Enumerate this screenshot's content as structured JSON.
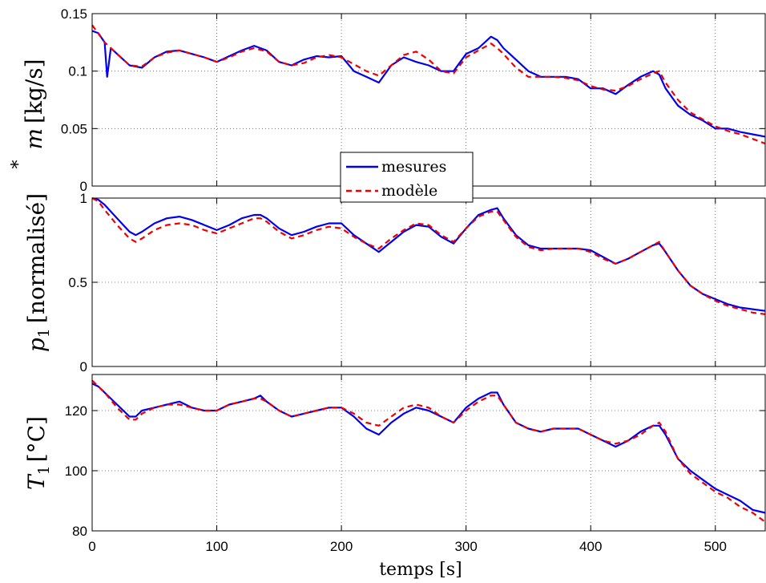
{
  "chart_data": [
    {
      "type": "line",
      "ylabel_var": "m",
      "ylabel_accent": "*",
      "ylabel_unit": "[kg/s]",
      "ylim": [
        0,
        0.15
      ],
      "yticks": [
        0,
        0.05,
        0.1,
        0.15
      ],
      "ytick_labels": [
        "0",
        "0.05",
        "0.1",
        "0.15"
      ],
      "xlim": [
        0,
        540
      ],
      "grid": true,
      "legend": {
        "position": "bottom-center",
        "entries": [
          "mesures",
          "modèle"
        ]
      },
      "series": [
        {
          "name": "mesures",
          "color": "#0000ee",
          "style": "solid",
          "x": [
            0,
            5,
            10,
            12,
            15,
            20,
            30,
            40,
            50,
            60,
            70,
            80,
            90,
            100,
            110,
            120,
            130,
            140,
            150,
            160,
            170,
            180,
            190,
            200,
            210,
            220,
            230,
            240,
            250,
            260,
            270,
            280,
            290,
            300,
            310,
            320,
            325,
            330,
            340,
            350,
            360,
            370,
            380,
            390,
            400,
            410,
            420,
            430,
            440,
            450,
            455,
            460,
            470,
            480,
            490,
            500,
            510,
            520,
            530,
            540
          ],
          "y": [
            0.135,
            0.133,
            0.125,
            0.095,
            0.12,
            0.115,
            0.105,
            0.103,
            0.112,
            0.117,
            0.118,
            0.115,
            0.112,
            0.108,
            0.113,
            0.118,
            0.122,
            0.118,
            0.108,
            0.105,
            0.11,
            0.113,
            0.112,
            0.113,
            0.1,
            0.095,
            0.09,
            0.105,
            0.112,
            0.108,
            0.105,
            0.1,
            0.1,
            0.115,
            0.12,
            0.13,
            0.127,
            0.12,
            0.11,
            0.1,
            0.095,
            0.095,
            0.095,
            0.093,
            0.085,
            0.085,
            0.08,
            0.088,
            0.095,
            0.1,
            0.097,
            0.085,
            0.07,
            0.062,
            0.057,
            0.05,
            0.05,
            0.047,
            0.045,
            0.043
          ]
        },
        {
          "name": "modèle",
          "color": "#ee0000",
          "style": "dashed",
          "x": [
            0,
            10,
            20,
            30,
            40,
            50,
            60,
            70,
            80,
            90,
            100,
            110,
            120,
            130,
            140,
            150,
            160,
            170,
            180,
            190,
            200,
            210,
            220,
            230,
            240,
            250,
            260,
            270,
            280,
            290,
            300,
            310,
            320,
            325,
            330,
            340,
            350,
            360,
            370,
            380,
            390,
            400,
            410,
            420,
            430,
            440,
            450,
            455,
            460,
            470,
            480,
            490,
            500,
            510,
            520,
            530,
            540
          ],
          "y": [
            0.14,
            0.125,
            0.115,
            0.105,
            0.104,
            0.112,
            0.116,
            0.118,
            0.115,
            0.112,
            0.108,
            0.112,
            0.117,
            0.12,
            0.117,
            0.108,
            0.105,
            0.107,
            0.112,
            0.114,
            0.112,
            0.106,
            0.1,
            0.096,
            0.105,
            0.114,
            0.117,
            0.11,
            0.1,
            0.098,
            0.112,
            0.118,
            0.124,
            0.12,
            0.115,
            0.103,
            0.095,
            0.095,
            0.095,
            0.094,
            0.092,
            0.087,
            0.084,
            0.083,
            0.087,
            0.093,
            0.098,
            0.1,
            0.09,
            0.075,
            0.064,
            0.058,
            0.052,
            0.048,
            0.045,
            0.041,
            0.037
          ]
        }
      ]
    },
    {
      "type": "line",
      "ylabel_var": "p",
      "ylabel_sub": "1",
      "ylabel_unit": "[normalisé]",
      "ylim": [
        0,
        1
      ],
      "yticks": [
        0,
        0.5,
        1
      ],
      "ytick_labels": [
        "0",
        "0.5",
        "1"
      ],
      "xlim": [
        0,
        540
      ],
      "grid": true,
      "series": [
        {
          "name": "mesures",
          "color": "#0000ee",
          "style": "solid",
          "x": [
            0,
            5,
            10,
            20,
            30,
            35,
            40,
            50,
            60,
            70,
            80,
            90,
            100,
            110,
            120,
            130,
            135,
            140,
            150,
            160,
            170,
            180,
            190,
            200,
            210,
            220,
            230,
            240,
            250,
            260,
            270,
            280,
            290,
            300,
            310,
            320,
            325,
            330,
            340,
            350,
            360,
            370,
            380,
            390,
            400,
            410,
            420,
            430,
            440,
            450,
            455,
            460,
            470,
            480,
            490,
            500,
            510,
            520,
            530,
            540
          ],
          "y": [
            1.0,
            0.99,
            0.96,
            0.88,
            0.8,
            0.78,
            0.8,
            0.85,
            0.88,
            0.89,
            0.87,
            0.84,
            0.81,
            0.84,
            0.88,
            0.9,
            0.9,
            0.88,
            0.82,
            0.78,
            0.8,
            0.83,
            0.85,
            0.85,
            0.78,
            0.73,
            0.68,
            0.74,
            0.8,
            0.84,
            0.83,
            0.77,
            0.73,
            0.82,
            0.9,
            0.93,
            0.94,
            0.88,
            0.78,
            0.72,
            0.7,
            0.7,
            0.7,
            0.7,
            0.69,
            0.65,
            0.61,
            0.64,
            0.68,
            0.72,
            0.73,
            0.68,
            0.57,
            0.48,
            0.43,
            0.4,
            0.37,
            0.35,
            0.34,
            0.33
          ]
        },
        {
          "name": "modèle",
          "color": "#ee0000",
          "style": "dashed",
          "x": [
            0,
            5,
            10,
            20,
            30,
            35,
            40,
            50,
            60,
            70,
            80,
            90,
            100,
            110,
            120,
            130,
            135,
            140,
            150,
            160,
            170,
            180,
            190,
            200,
            210,
            220,
            230,
            240,
            250,
            260,
            270,
            280,
            290,
            300,
            310,
            320,
            325,
            330,
            340,
            350,
            360,
            370,
            380,
            390,
            400,
            410,
            420,
            430,
            440,
            450,
            455,
            460,
            470,
            480,
            490,
            500,
            510,
            520,
            530,
            540
          ],
          "y": [
            1.0,
            0.98,
            0.93,
            0.84,
            0.76,
            0.74,
            0.76,
            0.81,
            0.84,
            0.85,
            0.84,
            0.81,
            0.79,
            0.82,
            0.85,
            0.88,
            0.88,
            0.86,
            0.8,
            0.76,
            0.78,
            0.81,
            0.83,
            0.82,
            0.77,
            0.73,
            0.7,
            0.76,
            0.81,
            0.85,
            0.84,
            0.78,
            0.74,
            0.82,
            0.89,
            0.92,
            0.92,
            0.87,
            0.77,
            0.71,
            0.69,
            0.7,
            0.7,
            0.7,
            0.68,
            0.64,
            0.61,
            0.64,
            0.68,
            0.72,
            0.74,
            0.68,
            0.57,
            0.48,
            0.43,
            0.39,
            0.36,
            0.34,
            0.32,
            0.31
          ]
        }
      ]
    },
    {
      "type": "line",
      "ylabel_var": "T",
      "ylabel_sub": "1",
      "ylabel_unit": "[°C]",
      "ylim": [
        80,
        132
      ],
      "yticks": [
        80,
        100,
        120
      ],
      "ytick_labels": [
        "80",
        "100",
        "120"
      ],
      "xlim": [
        0,
        540
      ],
      "xticks": [
        0,
        100,
        200,
        300,
        400,
        500
      ],
      "xtick_labels": [
        "0",
        "100",
        "200",
        "300",
        "400",
        "500"
      ],
      "xlabel": "temps [s]",
      "grid": true,
      "series": [
        {
          "name": "mesures",
          "color": "#0000ee",
          "style": "solid",
          "x": [
            0,
            5,
            10,
            20,
            30,
            35,
            40,
            50,
            60,
            70,
            80,
            90,
            100,
            110,
            120,
            130,
            135,
            140,
            150,
            160,
            170,
            180,
            190,
            200,
            210,
            220,
            230,
            240,
            250,
            260,
            270,
            280,
            290,
            300,
            310,
            320,
            325,
            330,
            340,
            350,
            360,
            370,
            380,
            390,
            400,
            410,
            420,
            430,
            440,
            450,
            455,
            460,
            470,
            480,
            490,
            500,
            510,
            520,
            530,
            540
          ],
          "y": [
            129,
            128,
            126,
            122,
            118,
            118,
            120,
            121,
            122,
            123,
            121,
            120,
            120,
            122,
            123,
            124,
            125,
            123,
            120,
            118,
            119,
            120,
            121,
            121,
            118,
            114,
            112,
            116,
            119,
            121,
            120,
            118,
            116,
            121,
            124,
            126,
            126,
            122,
            116,
            114,
            113,
            114,
            114,
            114,
            112,
            110,
            108,
            110,
            113,
            115,
            115,
            112,
            104,
            100,
            97,
            94,
            92,
            90,
            87,
            86
          ]
        },
        {
          "name": "modèle",
          "color": "#ee0000",
          "style": "dashed",
          "x": [
            0,
            5,
            10,
            20,
            30,
            35,
            40,
            50,
            60,
            70,
            80,
            90,
            100,
            110,
            120,
            130,
            135,
            140,
            150,
            160,
            170,
            180,
            190,
            200,
            210,
            220,
            230,
            240,
            250,
            260,
            270,
            280,
            290,
            300,
            310,
            320,
            325,
            330,
            340,
            350,
            360,
            370,
            380,
            390,
            400,
            410,
            420,
            430,
            440,
            450,
            455,
            460,
            470,
            480,
            490,
            500,
            510,
            520,
            530,
            540
          ],
          "y": [
            130,
            128,
            126,
            121,
            117,
            117,
            119,
            121,
            122,
            122,
            121,
            120,
            120,
            122,
            123,
            124,
            124,
            123,
            120,
            118,
            119,
            120,
            121,
            121,
            119,
            116,
            115,
            118,
            121,
            122,
            121,
            118,
            116,
            120,
            123,
            125,
            125,
            122,
            116,
            114,
            113,
            114,
            114,
            114,
            112,
            110,
            109,
            110,
            112,
            115,
            116,
            113,
            104,
            99,
            96,
            93,
            91,
            88,
            86,
            83
          ]
        }
      ]
    }
  ]
}
